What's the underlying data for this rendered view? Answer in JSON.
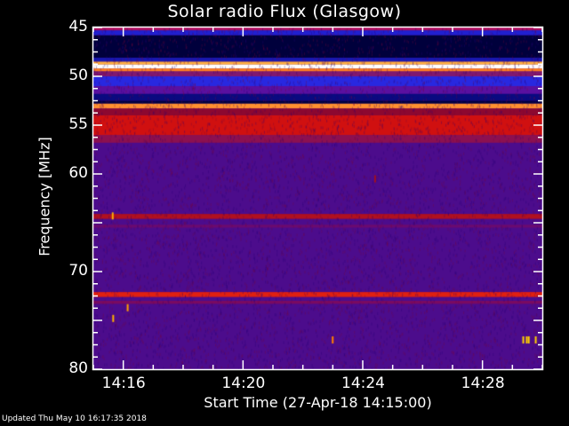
{
  "chart_data": {
    "type": "heatmap",
    "title": "Solar radio Flux (Glasgow)",
    "xlabel": "Start Time (27-Apr-18 14:15:00)",
    "ylabel": "Frequency [MHz]",
    "xlim": [
      "14:15",
      "14:30"
    ],
    "ylim": [
      45,
      80
    ],
    "y_inverted": true,
    "x_tick_labels": [
      "14:16",
      "14:20",
      "14:24",
      "14:28"
    ],
    "x_tick_minutes": [
      16,
      20,
      24,
      28
    ],
    "y_tick_labels": [
      "45",
      "50",
      "55",
      "60",
      "70",
      "80"
    ],
    "y_tick_values": [
      45,
      50,
      55,
      60,
      70,
      80
    ],
    "colormap": "red-temperature (black-blue-purple-red-orange-yellow-white)",
    "background_color": "#4c0c8c",
    "bands": [
      {
        "from": 45.0,
        "to": 45.3,
        "color": "#b01060"
      },
      {
        "from": 45.3,
        "to": 45.8,
        "color": "#2020d0"
      },
      {
        "from": 45.8,
        "to": 48.1,
        "color": "#00003c"
      },
      {
        "from": 48.1,
        "to": 48.5,
        "color": "#1818b0"
      },
      {
        "from": 48.5,
        "to": 48.8,
        "color": "#ffb040"
      },
      {
        "from": 48.8,
        "to": 49.2,
        "color": "#ffffff"
      },
      {
        "from": 49.2,
        "to": 49.5,
        "color": "#ff8020"
      },
      {
        "from": 49.5,
        "to": 50.0,
        "color": "#801870"
      },
      {
        "from": 50.0,
        "to": 51.0,
        "color": "#2828e0"
      },
      {
        "from": 51.0,
        "to": 51.8,
        "color": "#5a10a0"
      },
      {
        "from": 51.8,
        "to": 52.5,
        "color": "#0a0a80"
      },
      {
        "from": 52.5,
        "to": 52.8,
        "color": "#000040"
      },
      {
        "from": 52.8,
        "to": 53.3,
        "color": "#ff9030"
      },
      {
        "from": 53.3,
        "to": 54.0,
        "color": "#8c0830"
      },
      {
        "from": 54.0,
        "to": 56.0,
        "color": "#d01010"
      },
      {
        "from": 56.0,
        "to": 56.8,
        "color": "#8c1050"
      },
      {
        "from": 64.1,
        "to": 64.6,
        "color": "#b01020"
      },
      {
        "from": 65.2,
        "to": 65.5,
        "color": "#6a0a70"
      },
      {
        "from": 72.1,
        "to": 72.6,
        "color": "#e02010"
      },
      {
        "from": 73.0,
        "to": 73.3,
        "color": "#7a0a60"
      }
    ],
    "bursts": [
      {
        "time": "14:15:37",
        "freq": 64.3,
        "color": "#ffb000"
      },
      {
        "time": "14:16:07",
        "freq": 73.7,
        "color": "#ffa000"
      },
      {
        "time": "14:15:38",
        "freq": 74.8,
        "color": "#ffb000"
      },
      {
        "time": "14:24:23",
        "freq": 60.5,
        "color": "#a01020"
      },
      {
        "time": "14:22:58",
        "freq": 77.0,
        "color": "#ff8000"
      },
      {
        "time": "14:29:20",
        "freq": 77.0,
        "color": "#ffd000"
      },
      {
        "time": "14:29:27",
        "freq": 77.0,
        "color": "#ffd000"
      },
      {
        "time": "14:29:31",
        "freq": 77.0,
        "color": "#ffd000"
      },
      {
        "time": "14:29:45",
        "freq": 77.0,
        "color": "#ffd000"
      }
    ]
  },
  "footer": {
    "updated": "Updated Thu May 10 16:17:35 2018"
  }
}
